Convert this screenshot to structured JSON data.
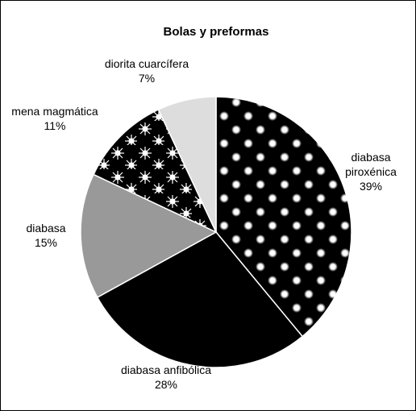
{
  "chart_data": {
    "type": "pie",
    "title": "Bolas y preformas",
    "categories": [
      "diabasa piroxénica",
      "diabasa anfibólica",
      "diabasa",
      "mena magmática",
      "diorita cuarcífera"
    ],
    "values": [
      39,
      28,
      15,
      11,
      7
    ],
    "value_labels": [
      "39%",
      "28%",
      "15%",
      "11%",
      "7%"
    ],
    "colors": [
      "#000000",
      "#000000",
      "#999999",
      "#000000",
      "#dddddd"
    ]
  }
}
